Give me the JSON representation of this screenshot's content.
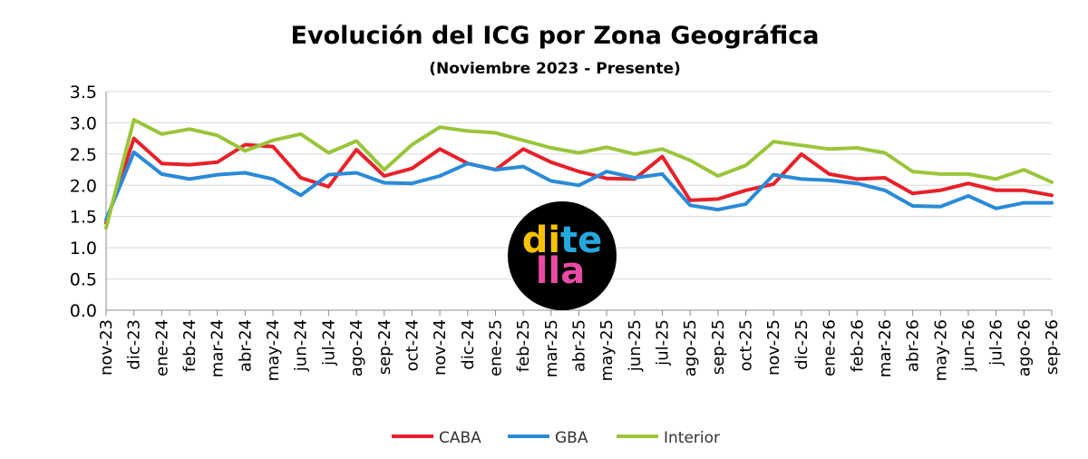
{
  "chart_data": {
    "type": "line",
    "title": "Evolución del ICG por Zona Geográfica",
    "subtitle": "(Noviembre 2023 - Presente)",
    "xlabel": "",
    "ylabel": "",
    "ylim": [
      0,
      3.5
    ],
    "yticks": [
      "0.0",
      "0.5",
      "1.0",
      "1.5",
      "2.0",
      "2.5",
      "3.0",
      "3.5"
    ],
    "grid": true,
    "legend_position": "bottom",
    "categories": [
      "nov-23",
      "dic-23",
      "ene-24",
      "feb-24",
      "mar-24",
      "abr-24",
      "may-24",
      "jun-24",
      "jul-24",
      "ago-24",
      "sep-24",
      "oct-24",
      "nov-24",
      "dic-24",
      "ene-25",
      "feb-25",
      "mar-25",
      "abr-25",
      "may-25",
      "jun-25",
      "jul-25",
      "ago-25",
      "sep-25",
      "oct-25",
      "nov-25",
      "dic-25",
      "ene-26",
      "feb-26",
      "mar-26",
      "abr-26",
      "may-26",
      "jun-26",
      "jul-26",
      "ago-26",
      "sep-26"
    ],
    "series": [
      {
        "name": "CABA",
        "color": "#e8212a",
        "values": [
          1.4,
          2.75,
          2.35,
          2.33,
          2.37,
          2.65,
          2.62,
          2.12,
          1.98,
          2.57,
          2.15,
          2.27,
          2.58,
          2.35,
          2.25,
          2.58,
          2.37,
          2.22,
          2.11,
          2.1,
          2.46,
          1.76,
          1.78,
          1.92,
          2.02,
          2.5,
          2.18,
          2.1,
          2.12,
          1.87,
          1.92,
          2.03,
          1.92,
          1.92,
          1.84
        ]
      },
      {
        "name": "GBA",
        "color": "#2b8ad8",
        "values": [
          1.45,
          2.53,
          2.18,
          2.1,
          2.17,
          2.2,
          2.1,
          1.84,
          2.17,
          2.2,
          2.04,
          2.03,
          2.15,
          2.35,
          2.25,
          2.3,
          2.07,
          2.0,
          2.22,
          2.12,
          2.18,
          1.68,
          1.61,
          1.7,
          2.17,
          2.1,
          2.08,
          2.03,
          1.92,
          1.67,
          1.66,
          1.83,
          1.63,
          1.72,
          1.72
        ]
      },
      {
        "name": "Interior",
        "color": "#9ac53a",
        "values": [
          1.32,
          3.05,
          2.82,
          2.9,
          2.8,
          2.55,
          2.72,
          2.82,
          2.52,
          2.71,
          2.25,
          2.65,
          2.93,
          2.87,
          2.84,
          2.72,
          2.6,
          2.52,
          2.61,
          2.5,
          2.58,
          2.4,
          2.15,
          2.32,
          2.7,
          2.64,
          2.58,
          2.6,
          2.52,
          2.22,
          2.18,
          2.18,
          2.1,
          2.25,
          2.05
        ]
      }
    ]
  },
  "watermark": {
    "line1": "dite",
    "line2": "lla",
    "colors": [
      "#f6c100",
      "#23a8df",
      "#e84aa4"
    ]
  }
}
